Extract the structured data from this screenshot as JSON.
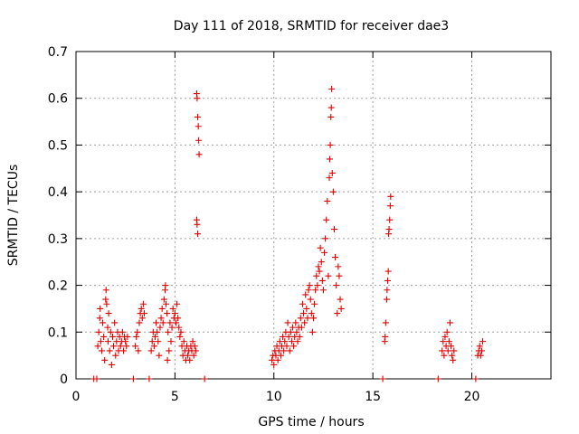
{
  "chart_data": {
    "type": "scatter",
    "title": "Day 111 of 2018, SRMTID for receiver dae3",
    "xlabel": "GPS time / hours",
    "ylabel": "SRMTID / TECUs",
    "xlim": [
      0,
      24
    ],
    "ylim": [
      0,
      0.7
    ],
    "xticks": [
      0,
      5,
      10,
      15,
      20
    ],
    "xtick_labels": [
      "0",
      "5",
      "10",
      "15",
      "20"
    ],
    "yticks": [
      0,
      0.1,
      0.2,
      0.3,
      0.4,
      0.5,
      0.6,
      0.7
    ],
    "ytick_labels": [
      "0",
      "0.1",
      "0.2",
      "0.3",
      "0.4",
      "0.5",
      "0.6",
      "0.7"
    ],
    "grid": true,
    "marker": "+",
    "color": "#e00000",
    "series": [
      {
        "name": "dae3",
        "points": [
          [
            0.9,
            0
          ],
          [
            1.05,
            0
          ],
          [
            1.1,
            0.07
          ],
          [
            1.15,
            0.1
          ],
          [
            1.2,
            0.13
          ],
          [
            1.22,
            0.15
          ],
          [
            1.25,
            0.08
          ],
          [
            1.3,
            0.06
          ],
          [
            1.35,
            0.12
          ],
          [
            1.4,
            0.09
          ],
          [
            1.45,
            0.04
          ],
          [
            1.5,
            0.17
          ],
          [
            1.52,
            0.19
          ],
          [
            1.55,
            0.16
          ],
          [
            1.6,
            0.11
          ],
          [
            1.62,
            0.08
          ],
          [
            1.65,
            0.14
          ],
          [
            1.7,
            0.06
          ],
          [
            1.75,
            0.1
          ],
          [
            1.8,
            0.03
          ],
          [
            1.85,
            0.09
          ],
          [
            1.9,
            0.07
          ],
          [
            1.95,
            0.12
          ],
          [
            2.0,
            0.05
          ],
          [
            2.05,
            0.08
          ],
          [
            2.1,
            0.1
          ],
          [
            2.15,
            0.06
          ],
          [
            2.2,
            0.09
          ],
          [
            2.25,
            0.07
          ],
          [
            2.3,
            0.08
          ],
          [
            2.35,
            0.1
          ],
          [
            2.4,
            0.06
          ],
          [
            2.45,
            0.09
          ],
          [
            2.5,
            0.08
          ],
          [
            2.55,
            0.07
          ],
          [
            2.6,
            0.09
          ],
          [
            2.9,
            0
          ],
          [
            3.0,
            0.07
          ],
          [
            3.05,
            0.09
          ],
          [
            3.1,
            0.1
          ],
          [
            3.15,
            0.06
          ],
          [
            3.2,
            0.12
          ],
          [
            3.25,
            0.14
          ],
          [
            3.3,
            0.15
          ],
          [
            3.35,
            0.13
          ],
          [
            3.4,
            0.16
          ],
          [
            3.45,
            0.14
          ],
          [
            3.7,
            0
          ],
          [
            3.8,
            0.06
          ],
          [
            3.85,
            0.08
          ],
          [
            3.9,
            0.1
          ],
          [
            3.95,
            0.07
          ],
          [
            4.0,
            0.09
          ],
          [
            4.05,
            0.12
          ],
          [
            4.1,
            0.1
          ],
          [
            4.15,
            0.08
          ],
          [
            4.2,
            0.05
          ],
          [
            4.25,
            0.11
          ],
          [
            4.3,
            0.13
          ],
          [
            4.35,
            0.15
          ],
          [
            4.4,
            0.12
          ],
          [
            4.45,
            0.17
          ],
          [
            4.5,
            0.19
          ],
          [
            4.52,
            0.2
          ],
          [
            4.55,
            0.16
          ],
          [
            4.6,
            0.14
          ],
          [
            4.62,
            0.04
          ],
          [
            4.65,
            0.1
          ],
          [
            4.7,
            0.06
          ],
          [
            4.75,
            0.12
          ],
          [
            4.8,
            0.08
          ],
          [
            4.85,
            0.11
          ],
          [
            4.9,
            0.15
          ],
          [
            4.95,
            0.13
          ],
          [
            5.0,
            0.14
          ],
          [
            5.05,
            0.12
          ],
          [
            5.1,
            0.16
          ],
          [
            5.15,
            0.13
          ],
          [
            5.2,
            0.11
          ],
          [
            5.25,
            0.09
          ],
          [
            5.3,
            0.1
          ],
          [
            5.35,
            0.07
          ],
          [
            5.4,
            0.05
          ],
          [
            5.45,
            0.08
          ],
          [
            5.5,
            0.06
          ],
          [
            5.55,
            0.04
          ],
          [
            5.6,
            0.07
          ],
          [
            5.65,
            0.05
          ],
          [
            5.7,
            0.06
          ],
          [
            5.75,
            0.04
          ],
          [
            5.8,
            0.07
          ],
          [
            5.85,
            0.06
          ],
          [
            5.9,
            0.08
          ],
          [
            5.95,
            0.05
          ],
          [
            6.0,
            0.07
          ],
          [
            6.05,
            0.06
          ],
          [
            6.1,
            0.61
          ],
          [
            6.12,
            0.6
          ],
          [
            6.15,
            0.56
          ],
          [
            6.18,
            0.54
          ],
          [
            6.2,
            0.51
          ],
          [
            6.22,
            0.48
          ],
          [
            6.1,
            0.34
          ],
          [
            6.12,
            0.33
          ],
          [
            6.15,
            0.31
          ],
          [
            6.5,
            0
          ],
          [
            9.9,
            0.04
          ],
          [
            9.95,
            0.05
          ],
          [
            10.0,
            0.03
          ],
          [
            10.05,
            0.06
          ],
          [
            10.1,
            0.05
          ],
          [
            10.15,
            0.07
          ],
          [
            10.2,
            0.04
          ],
          [
            10.25,
            0.06
          ],
          [
            10.3,
            0.08
          ],
          [
            10.35,
            0.05
          ],
          [
            10.4,
            0.07
          ],
          [
            10.45,
            0.09
          ],
          [
            10.5,
            0.06
          ],
          [
            10.55,
            0.08
          ],
          [
            10.6,
            0.1
          ],
          [
            10.65,
            0.07
          ],
          [
            10.7,
            0.12
          ],
          [
            10.75,
            0.09
          ],
          [
            10.8,
            0.06
          ],
          [
            10.85,
            0.1
          ],
          [
            10.9,
            0.08
          ],
          [
            10.95,
            0.11
          ],
          [
            11.0,
            0.07
          ],
          [
            11.05,
            0.09
          ],
          [
            11.1,
            0.12
          ],
          [
            11.15,
            0.1
          ],
          [
            11.2,
            0.08
          ],
          [
            11.25,
            0.11
          ],
          [
            11.3,
            0.09
          ],
          [
            11.35,
            0.13
          ],
          [
            11.4,
            0.11
          ],
          [
            11.45,
            0.16
          ],
          [
            11.5,
            0.14
          ],
          [
            11.55,
            0.12
          ],
          [
            11.6,
            0.18
          ],
          [
            11.65,
            0.15
          ],
          [
            11.7,
            0.13
          ],
          [
            11.75,
            0.19
          ],
          [
            11.8,
            0.2
          ],
          [
            11.85,
            0.17
          ],
          [
            11.9,
            0.14
          ],
          [
            11.95,
            0.1
          ],
          [
            12.0,
            0.13
          ],
          [
            12.05,
            0.16
          ],
          [
            12.1,
            0.19
          ],
          [
            12.15,
            0.22
          ],
          [
            12.2,
            0.2
          ],
          [
            12.25,
            0.24
          ],
          [
            12.3,
            0.23
          ],
          [
            12.35,
            0.28
          ],
          [
            12.4,
            0.25
          ],
          [
            12.45,
            0.21
          ],
          [
            12.5,
            0.19
          ],
          [
            12.55,
            0.27
          ],
          [
            12.6,
            0.3
          ],
          [
            12.65,
            0.34
          ],
          [
            12.7,
            0.38
          ],
          [
            12.75,
            0.22
          ],
          [
            12.8,
            0.43
          ],
          [
            12.82,
            0.47
          ],
          [
            12.85,
            0.5
          ],
          [
            12.88,
            0.56
          ],
          [
            12.9,
            0.58
          ],
          [
            12.92,
            0.62
          ],
          [
            12.95,
            0.44
          ],
          [
            13.0,
            0.4
          ],
          [
            13.05,
            0.32
          ],
          [
            13.1,
            0.26
          ],
          [
            13.15,
            0.2
          ],
          [
            13.2,
            0.14
          ],
          [
            13.25,
            0.24
          ],
          [
            13.3,
            0.22
          ],
          [
            13.35,
            0.17
          ],
          [
            13.4,
            0.15
          ],
          [
            15.5,
            0
          ],
          [
            15.6,
            0.08
          ],
          [
            15.62,
            0.09
          ],
          [
            15.65,
            0.12
          ],
          [
            15.7,
            0.17
          ],
          [
            15.72,
            0.19
          ],
          [
            15.75,
            0.21
          ],
          [
            15.78,
            0.23
          ],
          [
            15.8,
            0.31
          ],
          [
            15.82,
            0.32
          ],
          [
            15.85,
            0.34
          ],
          [
            15.88,
            0.37
          ],
          [
            15.9,
            0.39
          ],
          [
            18.3,
            0
          ],
          [
            18.5,
            0.06
          ],
          [
            18.55,
            0.08
          ],
          [
            18.6,
            0.05
          ],
          [
            18.65,
            0.09
          ],
          [
            18.7,
            0.07
          ],
          [
            18.75,
            0.1
          ],
          [
            18.8,
            0.06
          ],
          [
            18.85,
            0.08
          ],
          [
            18.9,
            0.12
          ],
          [
            18.95,
            0.07
          ],
          [
            19.0,
            0.05
          ],
          [
            19.05,
            0.04
          ],
          [
            19.1,
            0.06
          ],
          [
            20.2,
            0
          ],
          [
            20.3,
            0.05
          ],
          [
            20.35,
            0.06
          ],
          [
            20.4,
            0.07
          ],
          [
            20.45,
            0.05
          ],
          [
            20.5,
            0.06
          ],
          [
            20.55,
            0.08
          ]
        ]
      }
    ]
  }
}
